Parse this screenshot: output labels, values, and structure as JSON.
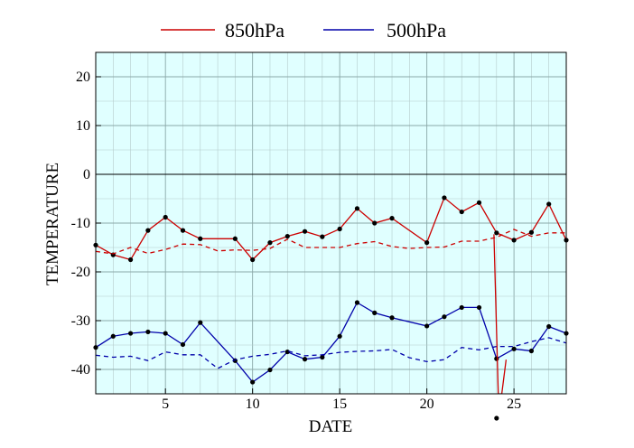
{
  "chart_data": {
    "type": "line",
    "xlabel": "DATE",
    "ylabel": "TEMPERATURE",
    "xlim": [
      1,
      28
    ],
    "ylim": [
      -45,
      25
    ],
    "xticks": [
      5,
      10,
      15,
      20,
      25
    ],
    "yticks": [
      -40,
      -30,
      -20,
      -10,
      0,
      10,
      20
    ],
    "grid": true,
    "legend_position": "top",
    "plot_background": "#e0ffff",
    "series": [
      {
        "name": "850hPa",
        "color": "#cc0000",
        "style": "solid",
        "markers": true,
        "x": [
          1,
          2,
          3,
          4,
          5,
          6,
          7,
          9,
          10,
          11,
          12,
          13,
          14,
          15,
          16,
          17,
          18,
          20,
          21,
          22,
          23,
          24,
          25,
          26,
          27,
          28
        ],
        "y": [
          -14.5,
          -16.5,
          -17.5,
          -11.5,
          -8.8,
          -11.5,
          -13.2,
          -13.2,
          -17.5,
          -14,
          -12.7,
          -11.7,
          -12.8,
          -11.2,
          -7,
          -10,
          -9,
          -14,
          -4.8,
          -7.7,
          -5.8,
          -12,
          -13.5,
          -11.9,
          -6.1,
          -13.5
        ]
      },
      {
        "name": "",
        "color": "#cc0000",
        "style": "dashed",
        "markers": false,
        "x": [
          1,
          2,
          3,
          4,
          5,
          6,
          7,
          8,
          9,
          10,
          11,
          12,
          13,
          14,
          15,
          16,
          17,
          18,
          19,
          20,
          21,
          22,
          23,
          24,
          25,
          26,
          27,
          28
        ],
        "y": [
          -15.8,
          -16.3,
          -15,
          -16.2,
          -15.4,
          -14.3,
          -14.4,
          -15.7,
          -15.5,
          -15.6,
          -15.2,
          -13.3,
          -15,
          -15,
          -15,
          -14.2,
          -13.8,
          -14.8,
          -15.2,
          -15,
          -14.9,
          -13.7,
          -13.7,
          -12.9,
          -11.3,
          -12.7,
          -12,
          -12
        ]
      },
      {
        "name": "500hPa",
        "color": "#0000aa",
        "style": "solid",
        "markers": true,
        "x": [
          1,
          2,
          3,
          4,
          5,
          6,
          7,
          9,
          10,
          11,
          12,
          13,
          14,
          15,
          16,
          17,
          18,
          20,
          21,
          22,
          23,
          24,
          25,
          26,
          27,
          28
        ],
        "y": [
          -35.5,
          -33.2,
          -32.6,
          -32.3,
          -32.6,
          -34.9,
          -30.4,
          -38.2,
          -42.6,
          -40.1,
          -36.4,
          -37.9,
          -37.5,
          -33.2,
          -26.3,
          -28.4,
          -29.4,
          -31.1,
          -29.2,
          -27.3,
          -27.3,
          -37.8,
          -35.8,
          -36.2,
          -31.2,
          -32.6
        ]
      },
      {
        "name": "",
        "color": "#0000aa",
        "style": "dashed",
        "markers": false,
        "x": [
          1,
          2,
          3,
          4,
          5,
          6,
          7,
          8,
          9,
          10,
          11,
          12,
          13,
          14,
          15,
          16,
          17,
          18,
          19,
          20,
          21,
          22,
          23,
          24,
          25,
          26,
          27,
          28
        ],
        "y": [
          -37.1,
          -37.5,
          -37.3,
          -38.2,
          -36.4,
          -37,
          -37,
          -39.8,
          -38,
          -37.3,
          -36.9,
          -36.2,
          -37.2,
          -37,
          -36.5,
          -36.3,
          -36.2,
          -35.9,
          -37.6,
          -38.4,
          -38,
          -35.5,
          -36,
          -35.3,
          -35.3,
          -34.3,
          -33.5,
          -34.6
        ]
      }
    ],
    "annotations": [
      {
        "type": "spike",
        "color": "#cc0000",
        "x": [
          23.85,
          24.1,
          24.3,
          24.55
        ],
        "y": [
          -12.3,
          -45,
          -45,
          -38
        ]
      },
      {
        "type": "point",
        "color": "#000000",
        "x": 24,
        "y": -50
      }
    ]
  }
}
